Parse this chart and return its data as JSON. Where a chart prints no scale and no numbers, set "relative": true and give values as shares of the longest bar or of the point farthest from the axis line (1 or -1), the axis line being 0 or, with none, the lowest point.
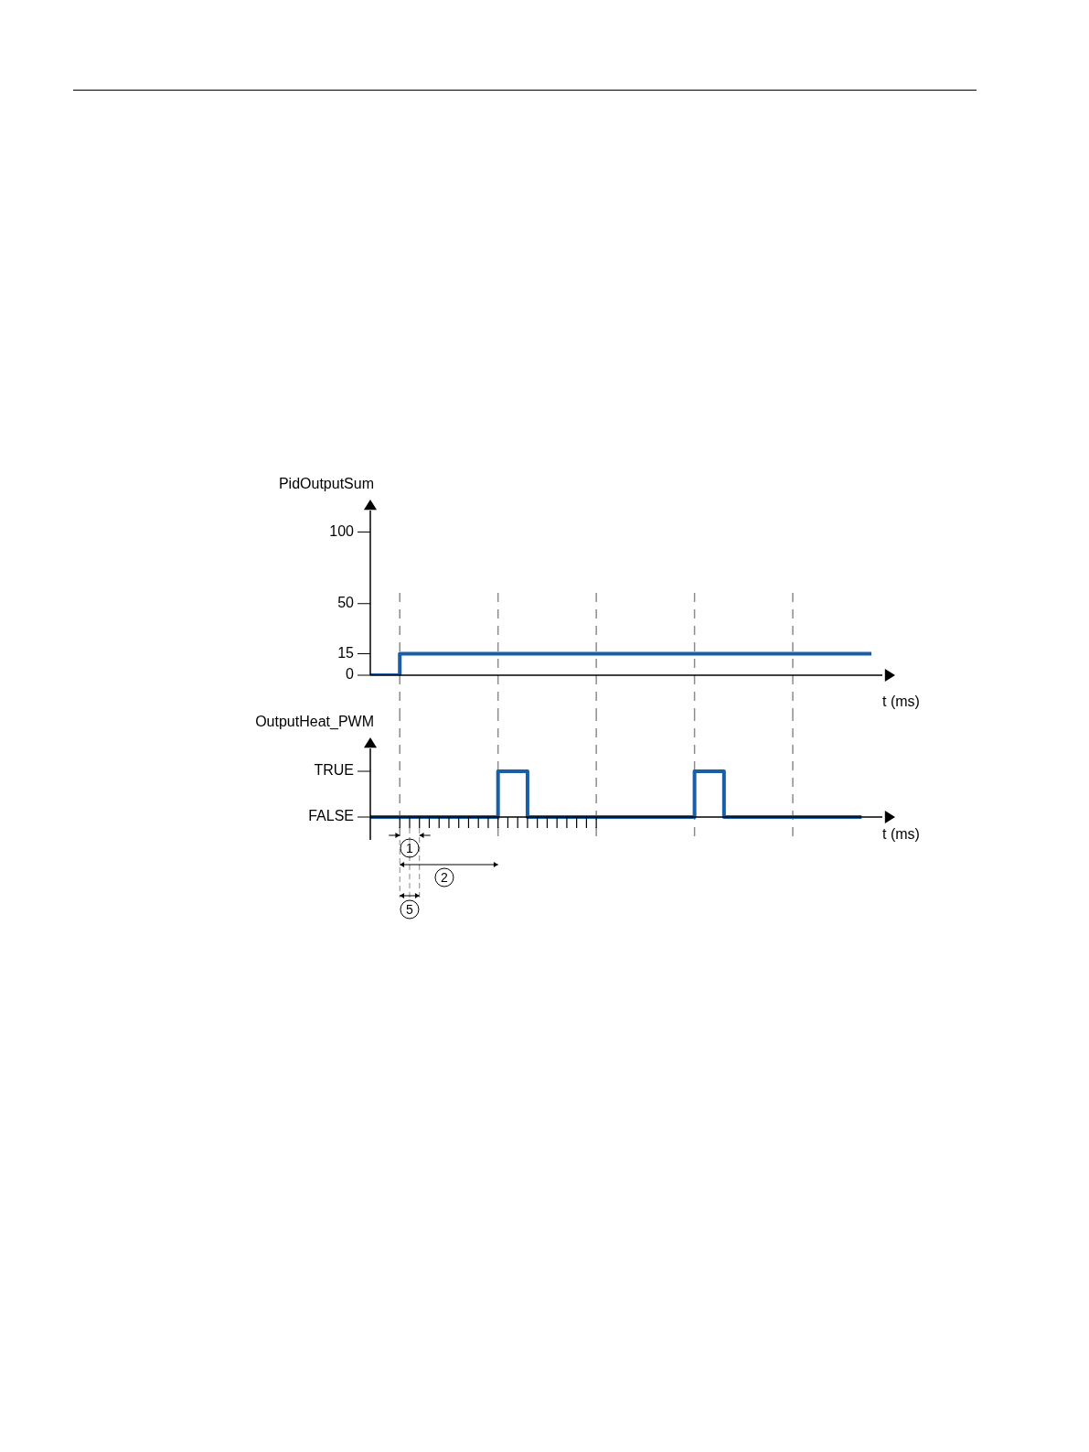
{
  "chart_data": [
    {
      "type": "step",
      "ylabel": "PidOutputSum",
      "xlabel": "t (ms)",
      "categories": [
        null,
        null,
        null,
        null,
        null,
        null,
        null,
        null,
        null,
        null,
        null,
        null,
        null,
        null,
        null,
        null,
        null,
        null,
        null,
        null,
        null,
        null,
        null,
        null,
        null,
        null,
        null,
        null,
        null,
        null,
        null,
        null,
        null,
        null,
        null,
        null,
        null,
        null,
        null,
        null,
        null,
        null,
        null,
        null,
        null,
        null,
        null,
        null,
        null,
        null,
        null,
        null
      ],
      "series": [
        {
          "color": "#1a5ea8",
          "values": [
            0,
            0,
            0,
            15,
            15,
            15,
            15,
            15,
            15,
            15,
            15,
            15,
            15,
            15,
            15,
            15,
            15,
            15,
            15,
            15,
            15,
            15,
            15,
            15,
            15,
            15,
            15,
            15,
            15,
            15,
            15,
            15,
            15,
            15,
            15,
            15,
            15,
            15,
            15,
            15,
            15,
            15,
            15,
            15,
            15,
            15,
            15,
            15,
            15,
            15,
            15,
            15
          ]
        }
      ],
      "ylim": [
        0,
        115
      ],
      "yticks": [
        0,
        15,
        50,
        100
      ],
      "tick_labels": "y",
      "grid": "x",
      "legend": false
    },
    {
      "type": "step",
      "ylabel": "OutputHeat_PWM",
      "xlabel": "t (ms)",
      "relative": true,
      "categories": [
        null,
        null,
        null,
        null,
        null,
        null,
        null,
        null,
        null,
        null,
        null,
        null,
        null,
        null,
        null,
        null,
        null,
        null,
        null,
        null,
        null,
        null,
        null,
        null,
        null,
        null,
        null,
        null,
        null,
        null,
        null,
        null,
        null,
        null,
        null,
        null,
        null,
        null,
        null,
        null,
        null,
        null,
        null,
        null,
        null,
        null,
        null,
        null,
        null,
        null,
        null,
        null
      ],
      "series": [
        {
          "color": "#1a5ea8",
          "values": [
            0,
            0,
            0,
            0,
            0,
            0,
            0,
            0,
            0,
            0,
            0,
            0,
            0,
            1,
            1,
            1,
            0,
            0,
            0,
            0,
            0,
            0,
            0,
            0,
            0,
            0,
            0,
            0,
            0,
            0,
            0,
            0,
            0,
            1,
            1,
            1,
            0,
            0,
            0,
            0,
            0,
            0,
            0,
            0,
            0,
            0,
            0,
            0,
            0,
            0,
            0,
            null
          ]
        }
      ],
      "tick_labels": false,
      "grid": "x",
      "legend": false,
      "annotations": [
        "TRUE",
        "FALSE",
        "1",
        "2",
        "5"
      ]
    }
  ]
}
